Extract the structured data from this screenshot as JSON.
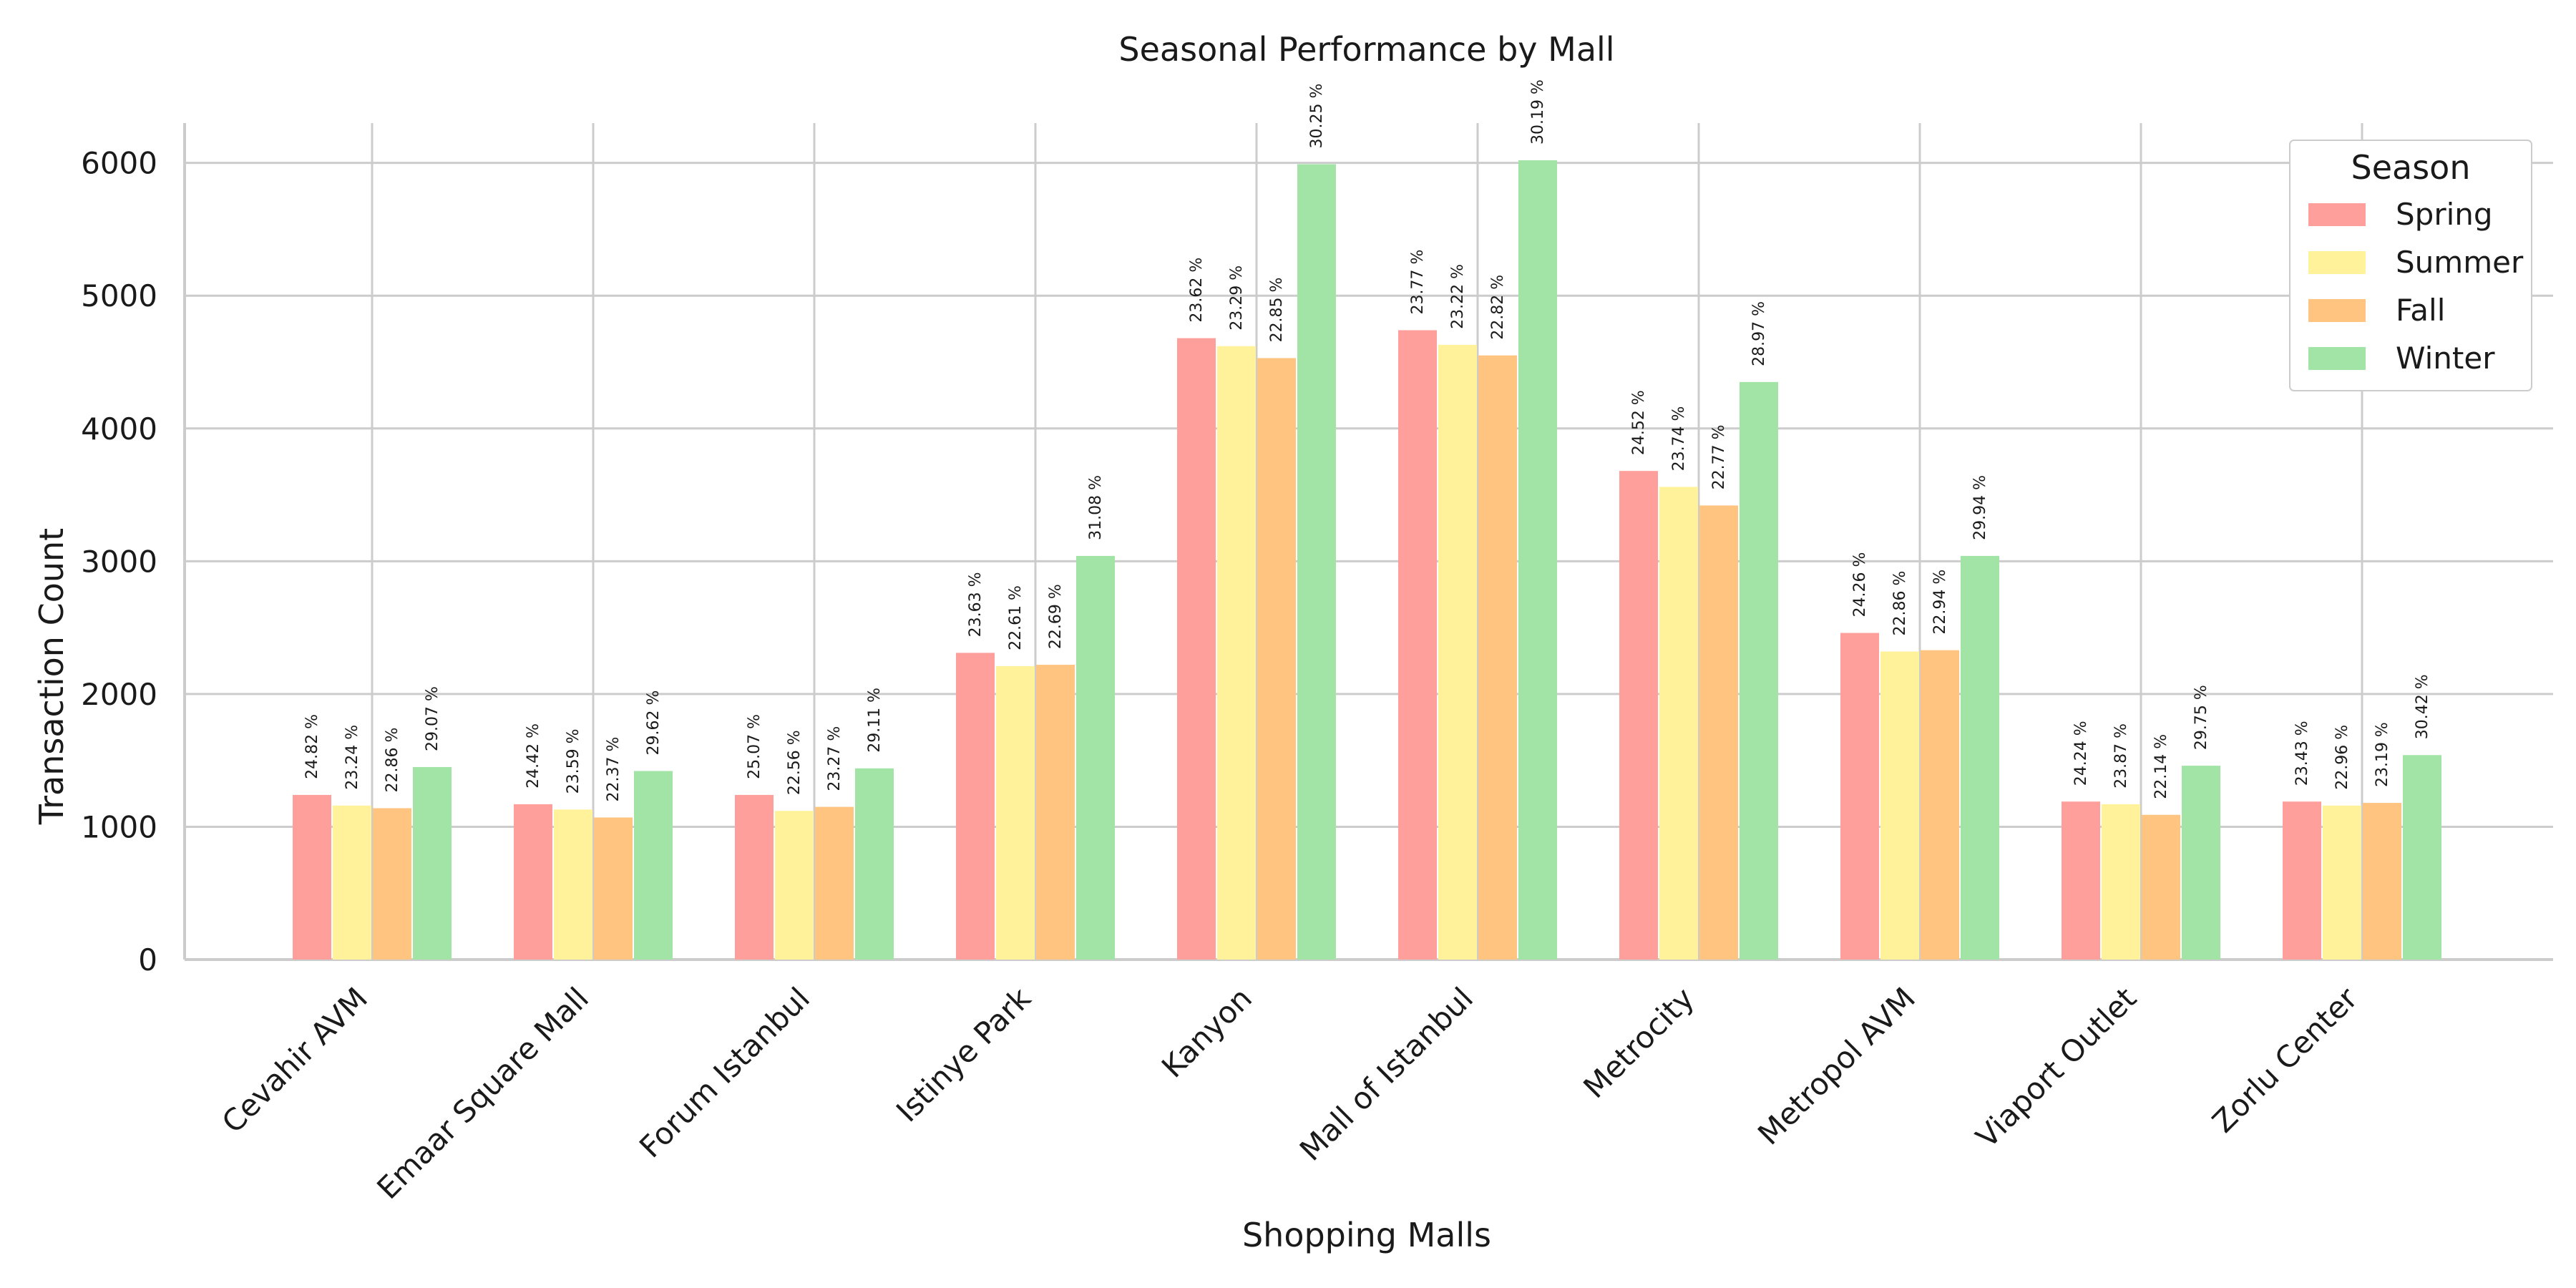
{
  "chart_data": {
    "type": "bar",
    "title": "Seasonal Performance by Mall",
    "xlabel": "Shopping Malls",
    "ylabel": "Transaction Count",
    "ylim": [
      0,
      6300
    ],
    "yticks": [
      0,
      1000,
      2000,
      3000,
      4000,
      5000,
      6000
    ],
    "grid": true,
    "legend": {
      "title": "Season",
      "position": "top-right"
    },
    "categories": [
      "Cevahir AVM",
      "Emaar Square Mall",
      "Forum Istanbul",
      "Istinye Park",
      "Kanyon",
      "Mall of Istanbul",
      "Metrocity",
      "Metropol AVM",
      "Viaport Outlet",
      "Zorlu Center"
    ],
    "series": [
      {
        "name": "Spring",
        "color": "#ff9f9b",
        "values": [
          1240,
          1170,
          1240,
          2310,
          4680,
          4740,
          3680,
          2460,
          1190,
          1190
        ],
        "labels": [
          "24.82 %",
          "24.42 %",
          "25.07 %",
          "23.63 %",
          "23.62 %",
          "23.77 %",
          "24.52 %",
          "24.26 %",
          "24.24 %",
          "23.43 %"
        ]
      },
      {
        "name": "Summer",
        "color": "#fff29a",
        "values": [
          1160,
          1130,
          1120,
          2210,
          4620,
          4630,
          3560,
          2320,
          1170,
          1160
        ],
        "labels": [
          "23.24 %",
          "23.59 %",
          "22.56 %",
          "22.61 %",
          "23.29 %",
          "23.22 %",
          "23.74 %",
          "22.86 %",
          "23.87 %",
          "22.96 %"
        ]
      },
      {
        "name": "Fall",
        "color": "#ffc480",
        "values": [
          1140,
          1070,
          1150,
          2220,
          4530,
          4550,
          3420,
          2330,
          1090,
          1180
        ],
        "labels": [
          "22.86 %",
          "22.37 %",
          "23.27 %",
          "22.69 %",
          "22.85 %",
          "22.82 %",
          "22.77 %",
          "22.94 %",
          "22.14 %",
          "23.19 %"
        ]
      },
      {
        "name": "Winter",
        "color": "#a1e4a5",
        "values": [
          1450,
          1420,
          1440,
          3040,
          5990,
          6020,
          4350,
          3040,
          1460,
          1540
        ],
        "labels": [
          "29.07 %",
          "29.62 %",
          "29.11 %",
          "31.08 %",
          "30.25 %",
          "30.19 %",
          "28.97 %",
          "29.94 %",
          "29.75 %",
          "30.42 %"
        ]
      }
    ]
  }
}
